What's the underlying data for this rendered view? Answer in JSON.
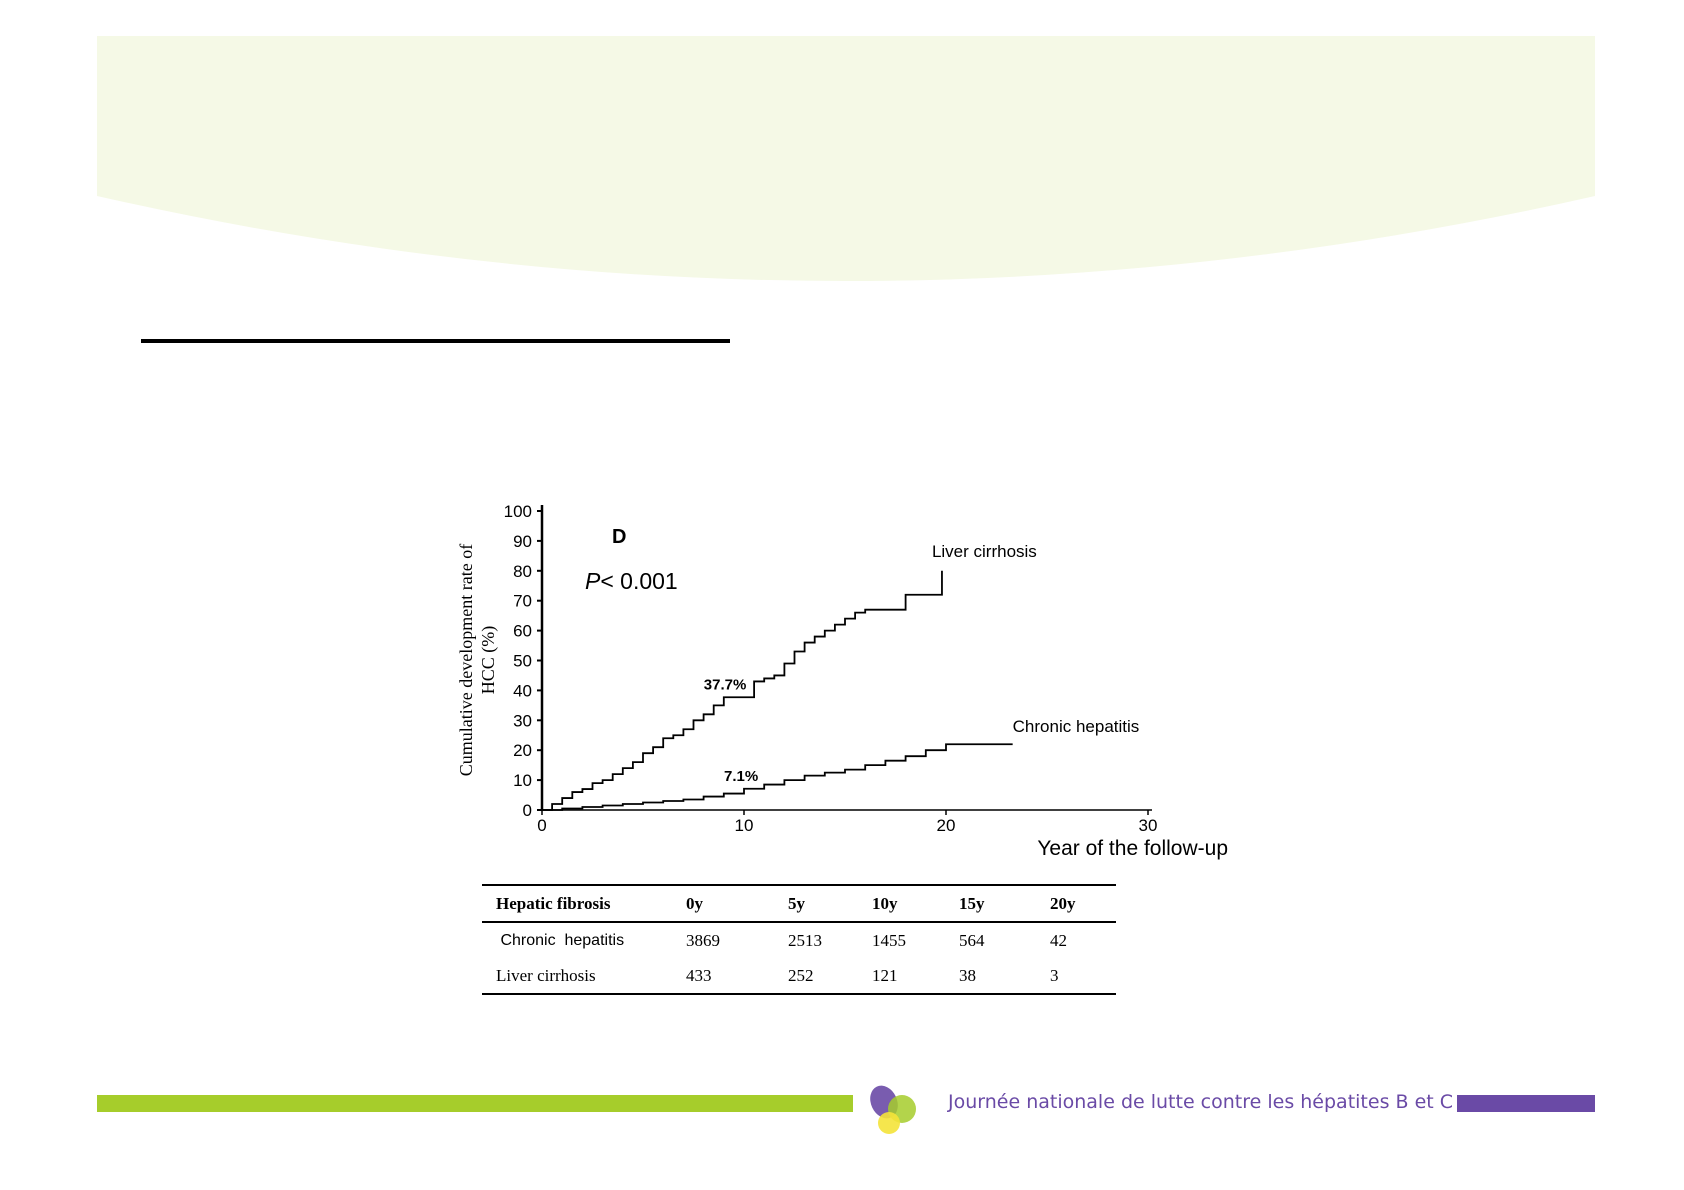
{
  "theme": {
    "header_color": "#f5f9e6",
    "green_accent": "#a6cd2b",
    "purple_accent": "#6a4aa6",
    "yellow_accent": "#f4e33a"
  },
  "chart_data": {
    "type": "line",
    "panel_label": "D",
    "p_value_text": "P< 0.001",
    "xlabel": "Year of the follow-up",
    "ylabel": "Cumulative development rate of HCC (%)",
    "xlim": [
      0,
      30
    ],
    "ylim": [
      0,
      100
    ],
    "xticks": [
      0,
      10,
      20,
      30
    ],
    "yticks": [
      0,
      10,
      20,
      30,
      40,
      50,
      60,
      70,
      80,
      90,
      100
    ],
    "grid": false,
    "series": [
      {
        "name": "Liver cirrhosis",
        "x": [
          0,
          0.5,
          1,
          1.5,
          2,
          2.5,
          3,
          3.5,
          4,
          4.5,
          5,
          5.5,
          6,
          6.5,
          7,
          7.5,
          8,
          8.5,
          9,
          9.5,
          10,
          10.5,
          11,
          11.5,
          12,
          12.5,
          13,
          13.5,
          14,
          14.5,
          15,
          15.5,
          16,
          16.5,
          17,
          17.5,
          18,
          18.5,
          19,
          19.5,
          19.8
        ],
        "y": [
          0,
          2,
          4,
          6,
          7,
          9,
          10,
          12,
          14,
          16,
          19,
          21,
          24,
          25,
          27,
          30,
          32,
          35,
          37.7,
          37.7,
          37.7,
          43,
          44,
          45,
          49,
          53,
          56,
          58,
          60,
          62,
          64,
          66,
          67,
          67,
          67,
          67,
          72,
          72,
          72,
          72,
          80
        ]
      },
      {
        "name": "Chronic hepatitis",
        "x": [
          0,
          1,
          2,
          3,
          4,
          5,
          6,
          7,
          8,
          9,
          10,
          11,
          12,
          13,
          14,
          15,
          16,
          17,
          18,
          19,
          20,
          21,
          22,
          23.3
        ],
        "y": [
          0,
          0.5,
          1,
          1.5,
          2,
          2.5,
          3,
          3.5,
          4.5,
          5.5,
          7.1,
          8.5,
          10,
          11.5,
          12.5,
          13.5,
          15,
          16.5,
          18,
          20,
          22,
          22,
          22,
          22
        ]
      }
    ],
    "annotations": [
      {
        "text": "37.7%",
        "x": 9,
        "y": 37.7
      },
      {
        "text": "7.1%",
        "x": 10,
        "y": 7.1
      }
    ]
  },
  "risk_table": {
    "headers": [
      "Hepatic fibrosis",
      "0y",
      "5y",
      "10y",
      "15y",
      "20y"
    ],
    "rows": [
      {
        "label": " Chronic  hepatitis",
        "values": [
          "3869",
          "2513",
          "1455",
          "564",
          "42"
        ]
      },
      {
        "label": "Liver cirrhosis",
        "values": [
          "433",
          "252",
          "121",
          "38",
          "3"
        ]
      }
    ]
  },
  "footer": {
    "text": "Journée nationale de lutte contre les hépatites B et C",
    "logo_icon": "three-overlapping-drops-logo-icon"
  }
}
